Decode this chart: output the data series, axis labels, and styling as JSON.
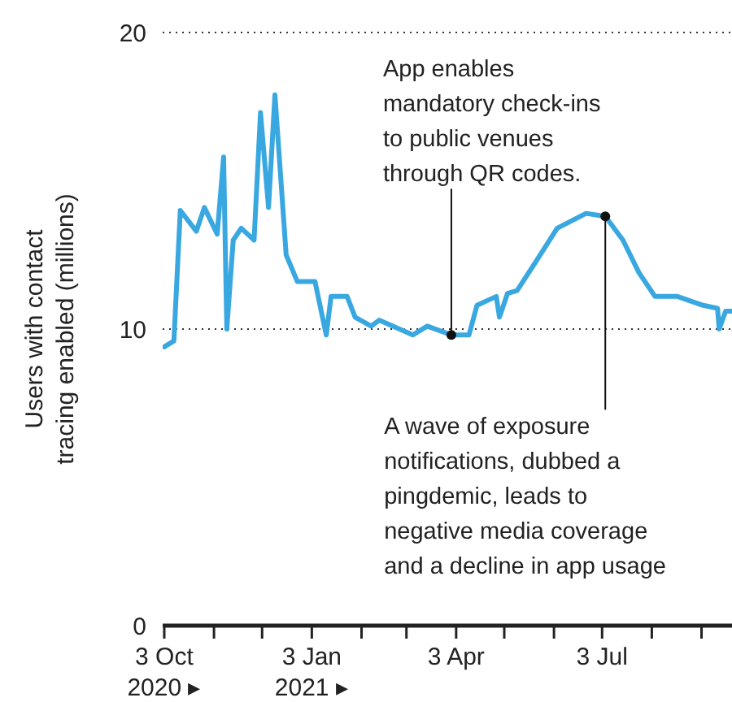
{
  "chart_data": {
    "type": "line",
    "ylabel": "Users with contact\ntracing enabled (millions)",
    "x": [
      "2020-10-03",
      "2020-10-09",
      "2020-10-13",
      "2020-10-23",
      "2020-10-28",
      "2020-11-05",
      "2020-11-09",
      "2020-11-11",
      "2020-11-15",
      "2020-11-20",
      "2020-11-28",
      "2020-12-02",
      "2020-12-07",
      "2020-12-11",
      "2020-12-18",
      "2020-12-25",
      "2021-01-05",
      "2021-01-12",
      "2021-01-15",
      "2021-01-25",
      "2021-01-30",
      "2021-02-09",
      "2021-02-14",
      "2021-03-07",
      "2021-03-16",
      "2021-03-31",
      "2021-04-11",
      "2021-04-16",
      "2021-04-28",
      "2021-04-30",
      "2021-05-05",
      "2021-05-11",
      "2021-05-23",
      "2021-06-05",
      "2021-06-23",
      "2021-07-05",
      "2021-07-16",
      "2021-07-26",
      "2021-08-05",
      "2021-08-19",
      "2021-09-04",
      "2021-09-13",
      "2021-09-14",
      "2021-09-18",
      "2021-09-22"
    ],
    "series": [
      {
        "color": "#3aa8e0",
        "values": [
          9.4,
          9.6,
          14.0,
          13.3,
          14.1,
          13.2,
          15.8,
          10.0,
          13.0,
          13.4,
          13.0,
          17.3,
          14.1,
          17.9,
          12.5,
          11.6,
          11.6,
          9.8,
          11.1,
          11.1,
          10.4,
          10.1,
          10.3,
          9.8,
          10.1,
          9.8,
          9.8,
          10.8,
          11.1,
          10.4,
          11.2,
          11.3,
          12.3,
          13.4,
          13.9,
          13.8,
          13.0,
          11.9,
          11.1,
          11.1,
          10.8,
          10.7,
          10.0,
          10.6,
          10.6
        ]
      }
    ],
    "xlim": [
      "2020-10-02",
      "2021-09-22"
    ],
    "xticks": [
      {
        "value": "2020-10-03",
        "label": "3 Oct\n2020 ▸"
      },
      {
        "value": "2020-11-03",
        "label": null
      },
      {
        "value": "2020-12-03",
        "label": null
      },
      {
        "value": "2021-01-03",
        "label": "3 Jan\n2021 ▸"
      },
      {
        "value": "2021-02-03",
        "label": null
      },
      {
        "value": "2021-03-03",
        "label": null
      },
      {
        "value": "2021-04-03",
        "label": "3 Apr"
      },
      {
        "value": "2021-05-03",
        "label": null
      },
      {
        "value": "2021-06-03",
        "label": null
      },
      {
        "value": "2021-07-03",
        "label": "3 Jul"
      },
      {
        "value": "2021-08-03",
        "label": null
      },
      {
        "value": "2021-09-03",
        "label": null
      }
    ],
    "ylim": [
      0,
      20
    ],
    "yticks": [
      0,
      10,
      20
    ],
    "grid": "y",
    "marker": "none",
    "line_style": "solid",
    "legend": false,
    "annotations": [
      {
        "text": "App enables mandatory check-ins to public venues through QR codes.",
        "x": "2021-03-31",
        "y": 9.8
      },
      {
        "text": "A wave of exposure notifications, dubbed a pingdemic, leads to negative media coverage and a decline in app usage",
        "x": "2021-07-05",
        "y": 13.8
      }
    ]
  }
}
